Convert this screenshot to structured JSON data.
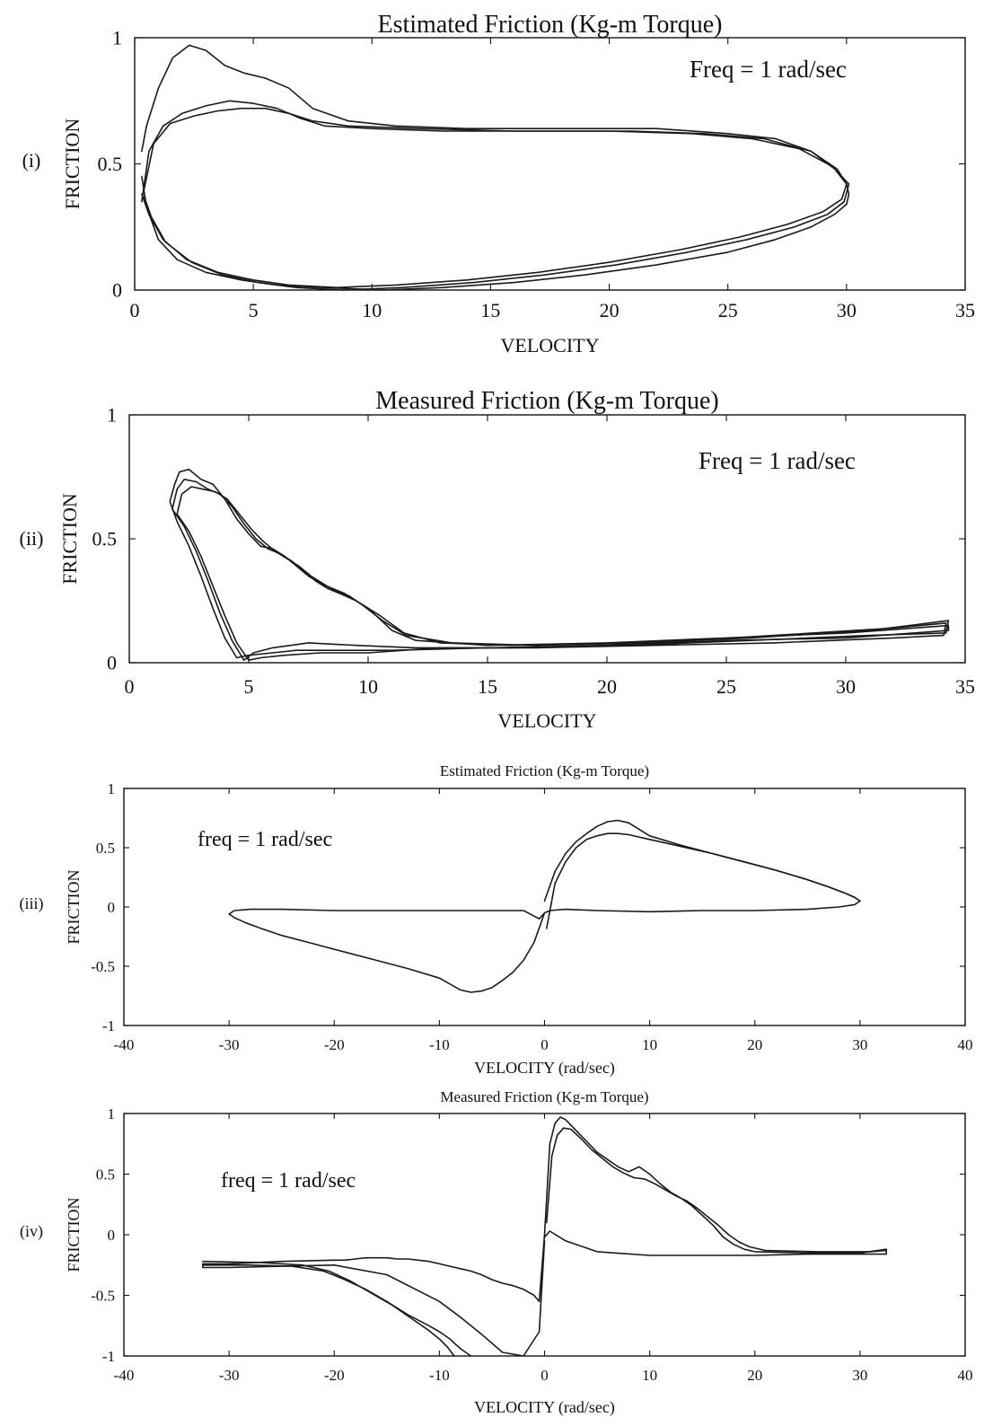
{
  "chart_data": [
    {
      "type": "line",
      "panel_label": "(i)",
      "title": "Estimated Friction (Kg-m Torque)",
      "xlabel": "VELOCITY",
      "ylabel": "FRICTION",
      "annotation": "Freq = 1 rad/sec",
      "xlim": [
        0,
        35
      ],
      "ylim": [
        0,
        1
      ],
      "xticks": [
        0,
        5,
        10,
        15,
        20,
        25,
        30,
        35
      ],
      "yticks": [
        0,
        0.5,
        1
      ],
      "xtick_labels": [
        "0",
        "5",
        "10",
        "15",
        "20",
        "25",
        "30",
        "35"
      ],
      "ytick_labels": [
        "0",
        "0.5",
        "1"
      ],
      "grid": false,
      "series": [
        {
          "x": [
            0.3,
            0.5,
            1,
            1.6,
            2.3,
            3,
            3.8,
            4.6,
            5.5,
            6.5,
            7.5,
            9,
            11,
            14,
            18,
            22,
            25,
            27,
            28.5,
            29.5,
            30,
            30.1,
            30,
            29.5,
            28.5,
            27,
            25,
            22,
            19,
            16,
            13,
            10.5,
            8,
            6,
            4.5,
            3,
            1.8,
            1,
            0.5,
            0.3
          ],
          "y": [
            0.55,
            0.65,
            0.8,
            0.92,
            0.97,
            0.95,
            0.89,
            0.86,
            0.84,
            0.8,
            0.72,
            0.67,
            0.65,
            0.64,
            0.64,
            0.64,
            0.62,
            0.6,
            0.55,
            0.48,
            0.42,
            0.38,
            0.34,
            0.3,
            0.25,
            0.2,
            0.15,
            0.1,
            0.06,
            0.03,
            0.01,
            0.0,
            0.01,
            0.02,
            0.04,
            0.07,
            0.12,
            0.2,
            0.33,
            0.45
          ]
        },
        {
          "x": [
            0.3,
            0.6,
            1.2,
            2,
            3,
            4,
            5,
            6,
            7,
            8,
            10,
            13,
            17,
            21,
            24,
            26.5,
            28.5,
            29.6,
            30,
            29.8,
            29,
            27.5,
            25.5,
            23,
            20,
            17,
            14,
            11,
            8.5,
            6.5,
            5,
            3.5,
            2.2,
            1.2,
            0.6,
            0.3
          ],
          "y": [
            0.35,
            0.55,
            0.65,
            0.7,
            0.73,
            0.75,
            0.74,
            0.72,
            0.68,
            0.65,
            0.64,
            0.63,
            0.63,
            0.63,
            0.62,
            0.6,
            0.55,
            0.48,
            0.42,
            0.36,
            0.31,
            0.26,
            0.21,
            0.16,
            0.11,
            0.07,
            0.04,
            0.02,
            0.01,
            0.02,
            0.04,
            0.07,
            0.12,
            0.2,
            0.3,
            0.38
          ]
        },
        {
          "x": [
            0.4,
            0.8,
            1.5,
            2.5,
            3.5,
            4.5,
            5.5,
            6.5,
            7.5,
            9,
            12,
            16,
            20,
            23.5,
            26,
            28,
            29.4,
            30.1,
            29.9,
            29.2,
            27.8,
            25.8,
            23.3,
            20.3,
            17.3,
            14.3,
            11.3,
            8.8,
            6.8,
            5.2,
            3.7,
            2.4,
            1.3,
            0.7,
            0.4
          ],
          "y": [
            0.4,
            0.58,
            0.66,
            0.69,
            0.71,
            0.72,
            0.72,
            0.7,
            0.67,
            0.65,
            0.64,
            0.63,
            0.63,
            0.62,
            0.6,
            0.56,
            0.49,
            0.42,
            0.35,
            0.3,
            0.25,
            0.2,
            0.15,
            0.1,
            0.06,
            0.03,
            0.01,
            0.0,
            0.01,
            0.03,
            0.06,
            0.11,
            0.19,
            0.29,
            0.37
          ]
        }
      ]
    },
    {
      "type": "line",
      "panel_label": "(ii)",
      "title": "Measured Friction (Kg-m Torque)",
      "xlabel": "VELOCITY",
      "ylabel": "FRICTION",
      "annotation": "Freq = 1 rad/sec",
      "xlim": [
        0,
        35
      ],
      "ylim": [
        0,
        1
      ],
      "xticks": [
        0,
        5,
        10,
        15,
        20,
        25,
        30,
        35
      ],
      "yticks": [
        0,
        0.5,
        1
      ],
      "xtick_labels": [
        "0",
        "5",
        "10",
        "15",
        "20",
        "25",
        "30",
        "35"
      ],
      "ytick_labels": [
        "0",
        "0.5",
        "1"
      ],
      "grid": false,
      "series": [
        {
          "x": [
            1.7,
            1.9,
            2.1,
            2.5,
            3,
            3.5,
            4,
            4.5,
            5,
            5.5,
            6,
            6.5,
            7,
            7.5,
            8,
            8.5,
            9,
            10,
            11,
            12,
            15,
            20,
            25,
            30,
            34.3,
            34.3,
            30,
            25,
            20,
            15,
            11,
            9,
            7,
            6,
            5,
            4.5,
            4,
            3.5,
            3,
            2.5,
            2,
            1.7
          ],
          "y": [
            0.65,
            0.72,
            0.77,
            0.78,
            0.74,
            0.72,
            0.66,
            0.58,
            0.52,
            0.47,
            0.46,
            0.43,
            0.39,
            0.35,
            0.32,
            0.3,
            0.28,
            0.22,
            0.13,
            0.09,
            0.07,
            0.08,
            0.1,
            0.12,
            0.15,
            0.13,
            0.1,
            0.09,
            0.07,
            0.06,
            0.05,
            0.05,
            0.05,
            0.04,
            0.03,
            0.02,
            0.1,
            0.22,
            0.35,
            0.47,
            0.57,
            0.65
          ]
        },
        {
          "x": [
            1.8,
            2,
            2.3,
            2.8,
            3.3,
            3.8,
            4.3,
            4.8,
            5.3,
            5.8,
            6.3,
            6.8,
            7.3,
            7.8,
            8.3,
            8.8,
            9.5,
            10.5,
            11.5,
            13,
            16,
            21,
            26,
            31,
            34.3,
            34.2,
            31,
            26,
            21,
            16,
            12,
            9.5,
            7.5,
            6,
            5.2,
            4.8,
            4.3,
            3.8,
            3.3,
            2.8,
            2.3,
            1.8
          ],
          "y": [
            0.62,
            0.7,
            0.74,
            0.73,
            0.7,
            0.68,
            0.63,
            0.56,
            0.5,
            0.46,
            0.44,
            0.41,
            0.37,
            0.33,
            0.3,
            0.28,
            0.25,
            0.19,
            0.12,
            0.08,
            0.07,
            0.08,
            0.1,
            0.13,
            0.17,
            0.12,
            0.11,
            0.09,
            0.07,
            0.06,
            0.06,
            0.07,
            0.08,
            0.06,
            0.04,
            0.01,
            0.09,
            0.2,
            0.33,
            0.45,
            0.55,
            0.62
          ]
        },
        {
          "x": [
            2,
            2.2,
            2.6,
            3.1,
            3.6,
            4.1,
            4.6,
            5.1,
            5.6,
            6.1,
            6.6,
            7.1,
            7.6,
            8.1,
            8.6,
            9.2,
            9.8,
            10.6,
            11.6,
            13.5,
            17,
            22,
            27,
            32,
            34.2,
            34.1,
            32,
            27,
            22,
            17,
            13,
            10,
            8,
            6.5,
            5.5,
            5,
            4.5,
            4,
            3.5,
            3,
            2.5,
            2
          ],
          "y": [
            0.6,
            0.68,
            0.71,
            0.7,
            0.69,
            0.66,
            0.6,
            0.54,
            0.49,
            0.45,
            0.42,
            0.39,
            0.35,
            0.32,
            0.29,
            0.27,
            0.23,
            0.17,
            0.11,
            0.08,
            0.07,
            0.08,
            0.11,
            0.14,
            0.16,
            0.11,
            0.1,
            0.08,
            0.07,
            0.06,
            0.06,
            0.04,
            0.04,
            0.03,
            0.02,
            0.01,
            0.08,
            0.19,
            0.31,
            0.43,
            0.53,
            0.6
          ]
        }
      ]
    },
    {
      "type": "line",
      "panel_label": "(iii)",
      "title": "Estimated Friction (Kg-m Torque)",
      "xlabel": "VELOCITY (rad/sec)",
      "ylabel": "FRICTION",
      "annotation": "freq = 1 rad/sec",
      "xlim": [
        -40,
        40
      ],
      "ylim": [
        -1,
        1
      ],
      "xticks": [
        -40,
        -30,
        -20,
        -10,
        0,
        10,
        20,
        30,
        40
      ],
      "yticks": [
        -1,
        -0.5,
        0,
        0.5,
        1
      ],
      "xtick_labels": [
        "-40",
        "-30",
        "-20",
        "-10",
        "0",
        "10",
        "20",
        "30",
        "40"
      ],
      "ytick_labels": [
        "-1",
        "-0.5",
        "0",
        "0.5",
        "1"
      ],
      "grid": false,
      "series": [
        {
          "x": [
            0,
            1,
            2,
            3,
            4,
            5,
            6,
            7,
            8,
            10,
            13,
            16,
            19,
            22,
            25,
            27,
            28.5,
            29.5,
            30,
            29.5,
            28,
            25,
            20,
            15,
            10,
            5,
            2,
            0.5,
            0,
            -1,
            -2,
            -3,
            -4,
            -5,
            -6,
            -7,
            -8,
            -10,
            -13,
            -16,
            -19,
            -22,
            -25,
            -27,
            -28.5,
            -29.5,
            -30,
            -29.5,
            -28,
            -25,
            -20,
            -15,
            -10,
            -5,
            -2,
            -0.5,
            0
          ],
          "y": [
            0.05,
            0.3,
            0.45,
            0.55,
            0.62,
            0.68,
            0.72,
            0.73,
            0.71,
            0.6,
            0.52,
            0.45,
            0.38,
            0.31,
            0.23,
            0.17,
            0.12,
            0.08,
            0.05,
            0.02,
            0.0,
            -0.02,
            -0.03,
            -0.03,
            -0.04,
            -0.03,
            -0.02,
            -0.03,
            -0.05,
            -0.3,
            -0.45,
            -0.55,
            -0.62,
            -0.68,
            -0.71,
            -0.72,
            -0.7,
            -0.6,
            -0.52,
            -0.45,
            -0.38,
            -0.31,
            -0.24,
            -0.18,
            -0.13,
            -0.09,
            -0.06,
            -0.03,
            -0.02,
            -0.02,
            -0.03,
            -0.03,
            -0.03,
            -0.03,
            -0.03,
            -0.1,
            -0.05
          ]
        },
        {
          "x": [
            0.2,
            1,
            2,
            3,
            4,
            5,
            6,
            7,
            8,
            10,
            13,
            16,
            19,
            22,
            25,
            27,
            28.5,
            29.5,
            30
          ],
          "y": [
            -0.18,
            0.2,
            0.38,
            0.5,
            0.57,
            0.6,
            0.62,
            0.62,
            0.61,
            0.57,
            0.51,
            0.45,
            0.38,
            0.31,
            0.23,
            0.17,
            0.12,
            0.08,
            0.05
          ]
        }
      ]
    },
    {
      "type": "line",
      "panel_label": "(iv)",
      "title": "Measured Friction (Kg-m Torque)",
      "xlabel": "VELOCITY (rad/sec)",
      "ylabel": "FRICTION",
      "annotation": "freq = 1 rad/sec",
      "xlim": [
        -40,
        40
      ],
      "ylim": [
        -1,
        1
      ],
      "xticks": [
        -40,
        -30,
        -20,
        -10,
        0,
        10,
        20,
        30,
        40
      ],
      "yticks": [
        -1,
        -0.5,
        0,
        0.5,
        1
      ],
      "xtick_labels": [
        "-40",
        "-30",
        "-20",
        "-10",
        "0",
        "10",
        "20",
        "30",
        "40"
      ],
      "ytick_labels": [
        "-1",
        "-0.5",
        "0",
        "0.5",
        "1"
      ],
      "grid": false,
      "series": [
        {
          "x": [
            0,
            0.5,
            1,
            1.5,
            2,
            3,
            4,
            5,
            6,
            7,
            8,
            9,
            10,
            11,
            12,
            13,
            14,
            15,
            16,
            17,
            18,
            19,
            20,
            25,
            30,
            32.5,
            32.5,
            30,
            25,
            20,
            15,
            10,
            5,
            2,
            0.5,
            0
          ],
          "y": [
            0.0,
            0.75,
            0.92,
            0.97,
            0.95,
            0.86,
            0.77,
            0.68,
            0.62,
            0.56,
            0.52,
            0.56,
            0.5,
            0.42,
            0.35,
            0.3,
            0.24,
            0.16,
            0.08,
            -0.02,
            -0.08,
            -0.12,
            -0.14,
            -0.15,
            -0.15,
            -0.12,
            -0.16,
            -0.16,
            -0.16,
            -0.17,
            -0.17,
            -0.17,
            -0.14,
            -0.05,
            0.03,
            -0.02
          ]
        },
        {
          "x": [
            0.2,
            0.7,
            1.2,
            1.8,
            2.5,
            3.5,
            4.5,
            5.5,
            6.5,
            7.5,
            8.5,
            9.5,
            10.5,
            11.5,
            12.5,
            13.5,
            14.5,
            15.5,
            16.5,
            17.5,
            18.5,
            19.5,
            21,
            26,
            31,
            32.5
          ],
          "y": [
            0.1,
            0.65,
            0.82,
            0.88,
            0.87,
            0.79,
            0.7,
            0.63,
            0.56,
            0.51,
            0.47,
            0.46,
            0.42,
            0.37,
            0.32,
            0.28,
            0.22,
            0.15,
            0.08,
            0.0,
            -0.06,
            -0.1,
            -0.13,
            -0.14,
            -0.14,
            -0.13
          ]
        },
        {
          "x": [
            0,
            -0.5,
            -1,
            -2,
            -3,
            -4,
            -5,
            -6,
            -7,
            -8,
            -9,
            -10,
            -11,
            -12,
            -13,
            -14,
            -15,
            -16,
            -17,
            -18,
            -19,
            -20,
            -25,
            -30,
            -32.5,
            -32.5,
            -30,
            -25,
            -20,
            -15,
            -10,
            -8,
            -6,
            -4,
            -2,
            -0.5,
            0
          ],
          "y": [
            0.0,
            -0.55,
            -0.5,
            -0.45,
            -0.42,
            -0.4,
            -0.37,
            -0.33,
            -0.3,
            -0.28,
            -0.26,
            -0.24,
            -0.22,
            -0.21,
            -0.2,
            -0.2,
            -0.19,
            -0.19,
            -0.19,
            -0.2,
            -0.21,
            -0.21,
            -0.22,
            -0.24,
            -0.24,
            -0.27,
            -0.27,
            -0.26,
            -0.25,
            -0.33,
            -0.55,
            -0.68,
            -0.82,
            -0.97,
            -1.0,
            -0.8,
            -0.05
          ]
        },
        {
          "x": [
            -32.5,
            -28,
            -24,
            -21,
            -19,
            -17,
            -15,
            -13,
            -11,
            -10,
            -9,
            -8.5,
            -8,
            -7.5,
            -7
          ],
          "y": [
            -0.25,
            -0.25,
            -0.26,
            -0.3,
            -0.37,
            -0.45,
            -0.55,
            -0.66,
            -0.75,
            -0.8,
            -0.86,
            -0.9,
            -0.94,
            -0.97,
            -1.0
          ]
        },
        {
          "x": [
            -32.5,
            -27,
            -23,
            -20.5,
            -18.5,
            -16.5,
            -14.5,
            -12.5,
            -11,
            -10,
            -9.2,
            -8.6
          ],
          "y": [
            -0.22,
            -0.23,
            -0.25,
            -0.3,
            -0.38,
            -0.48,
            -0.58,
            -0.7,
            -0.79,
            -0.86,
            -0.93,
            -1.0
          ]
        }
      ]
    }
  ]
}
